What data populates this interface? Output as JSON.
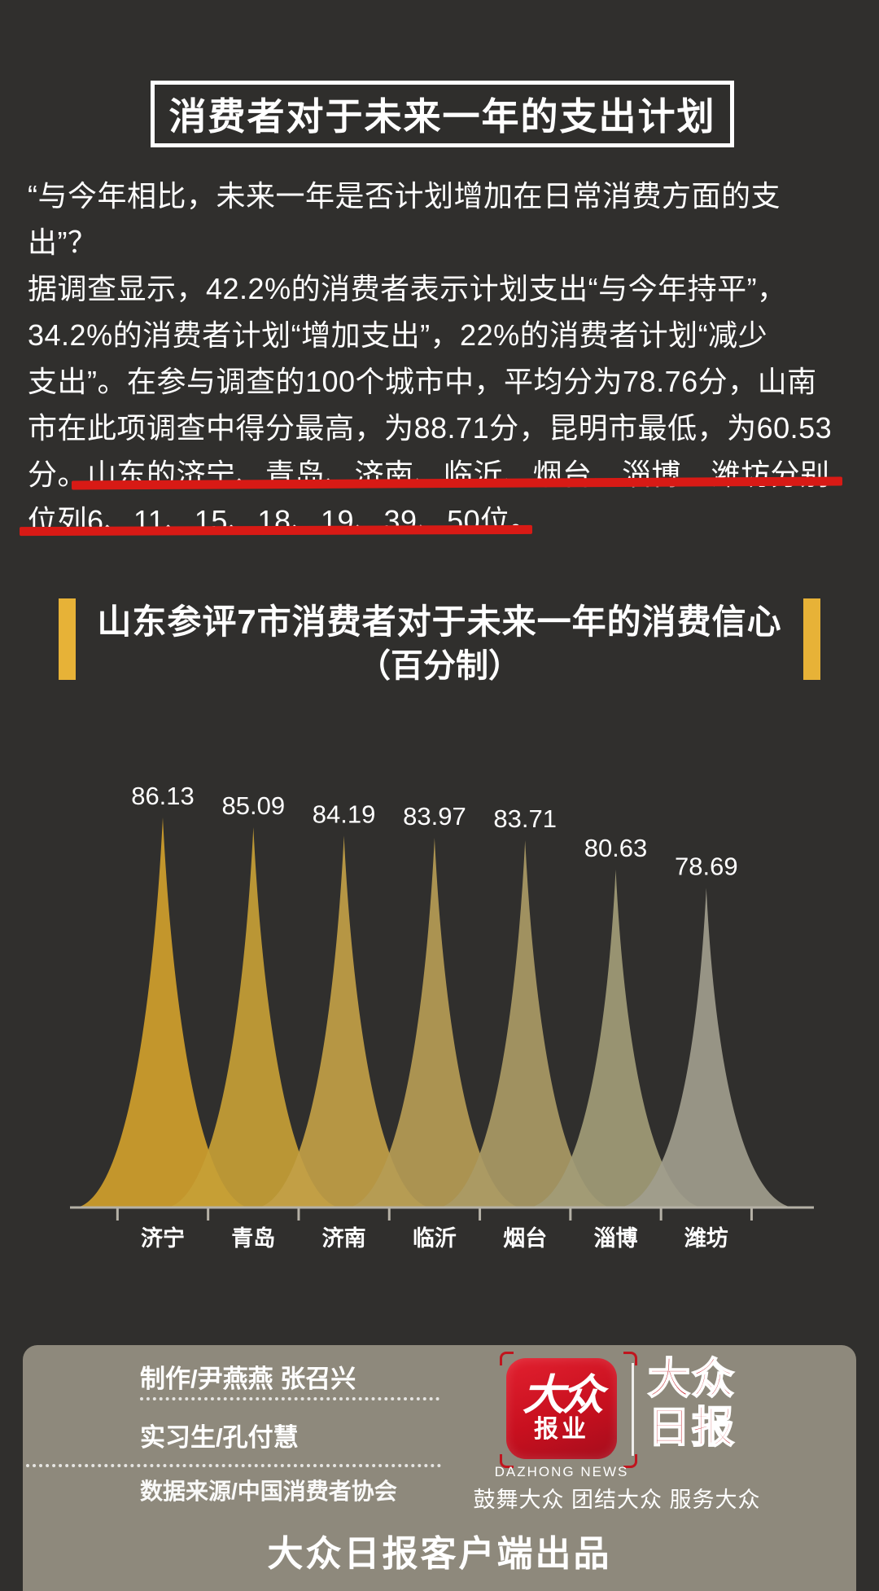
{
  "page": {
    "background": "#302f2d"
  },
  "title_banner": {
    "text": "消费者对于未来一年的支出计划"
  },
  "paragraph": {
    "lines": [
      "“与今年相比，未来一年是否计划增加在日常消费方面的支",
      "出”？",
      "据调查显示，42.2%的消费者表示计划支出“与今年持平”，",
      "34.2%的消费者计划“增加支出”，22%的消费者计划“减少",
      "支出”。在参与调查的100个城市中，平均分为78.76分，山南",
      "市在此项调查中得分最高，为88.71分，昆明市最低，为60.53",
      "分。山东的济宁、青岛、济南、临沂、烟台、淄博、潍坊分别",
      "位列6、11、15、18、19、39、50位。"
    ],
    "highlight_color": "#d81a15"
  },
  "chart_data": {
    "type": "area",
    "title": "山东参评7市消费者对于未来一年的消费信心",
    "subtitle": "（百分制）",
    "categories": [
      "济宁",
      "青岛",
      "济南",
      "临沂",
      "烟台",
      "淄博",
      "潍坊"
    ],
    "values": [
      86.13,
      85.09,
      84.19,
      83.97,
      83.71,
      80.63,
      78.69
    ],
    "colors": [
      "#d0a02c",
      "#c79f36",
      "#c2a046",
      "#b69c55",
      "#aa9a65",
      "#a29c77",
      "#a19d8d"
    ],
    "accent_color": "#e7b237",
    "axis_color": "#b5b1a6",
    "label_color": "#ffffff",
    "grid": "off",
    "legend": "none"
  },
  "footer": {
    "credits": [
      "制作/尹燕燕 张召兴",
      "实习生/孔付慧",
      "数据来源/中国消费者协会"
    ],
    "logo": {
      "badge_line1": "大众",
      "badge_line2": "报业",
      "caption": "DAZHONG NEWS",
      "paper_line1": "大众",
      "paper_line2": "日报",
      "red": "#c0151e"
    },
    "slogan": "鼓舞大众 团结大众 服务大众",
    "produced_by": "大众日报客户端出品"
  }
}
